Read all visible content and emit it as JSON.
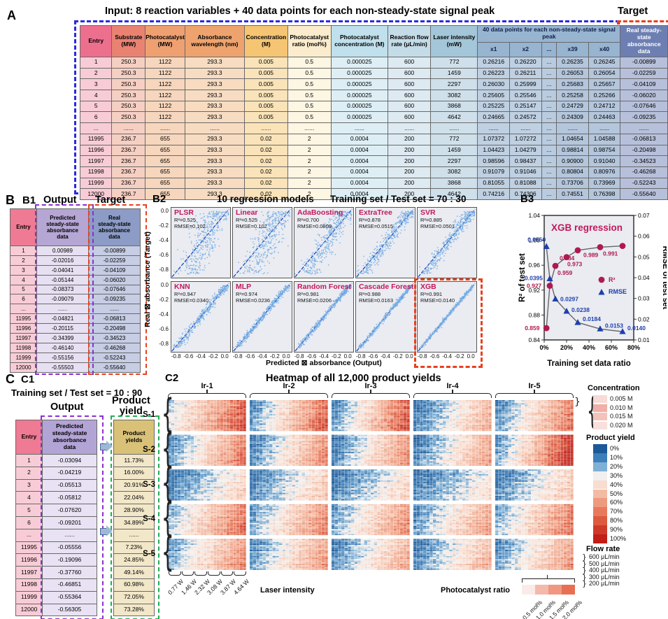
{
  "colors": {
    "blue_dash": "#2a2ae0",
    "red_dash": "#e8401e",
    "purple_dash": "#8c2fd0",
    "green_dash": "#1fae50",
    "model_name": "#c2185b",
    "scatter_point": "#78aee3",
    "scatter_line": "#1a43b8",
    "r2_marker": "#b01950",
    "rmse_marker": "#1f3fae",
    "plot_bg": "#eaecf2",
    "colA_hdr": [
      "#ec6f8e",
      "#ea8272",
      "#efa071",
      "#eea36e",
      "#f6c573",
      "#faeccc",
      "#bfe0ec",
      "#c4dce8",
      "#a3c6d8",
      "#97b4d0",
      "#97b4d0",
      "#97b4d0",
      "#97b4d0",
      "#97b4d0",
      "#6d7fb2"
    ],
    "colA_cell": [
      "#f8ccd6",
      "#f6cfc3",
      "#f6d6bd",
      "#f7dcc2",
      "#fae3b8",
      "#fdf6e3",
      "#ddeff5",
      "#ddeaf1",
      "#cfe0ea",
      "#bfd0e2",
      "#bfd0e2",
      "#b9cbdf",
      "#b4c6dc",
      "#b4c6dc",
      "#b7c0da"
    ],
    "b1_hdr": [
      "#ef7a93",
      "#b5a6d4",
      "#8c9cc6"
    ],
    "b1_cell": [
      "#f8ccd6",
      "#e7e0f2",
      "#c6cde4"
    ],
    "c1_hdr": [
      "#ef7a93",
      "#b3a4d6",
      "#d9c178"
    ],
    "c1_cell": [
      "#f8ccd6",
      "#e8e2f4",
      "#f2e7c8"
    ]
  },
  "panelA": {
    "label": "A",
    "title": "Input: 8 reaction variables + 40 data points for each non-steady-state signal peak",
    "target_label": "Target",
    "headers": [
      "Entry",
      "Substrate\n(MW)",
      "Photocatalyst\n(MW)",
      "Absorbance\nwavelength (nm)",
      "Concentration\n(M)",
      "Photocatalyst\nratio (mol%)",
      "Photocatalyst\nconcentration (M)",
      "Reaction flow\nrate (μL/min)",
      "Laser intensity\n(mW)"
    ],
    "span_header": "40 data points for each non-steady-state signal peak",
    "x_headers": [
      "x1",
      "x2",
      "...",
      "x39",
      "x40"
    ],
    "target_header": "Real steady-state\nabsorbance data",
    "rows": [
      [
        "1",
        "250.3",
        "1122",
        "293.3",
        "0.005",
        "0.5",
        "0.000025",
        "600",
        "772",
        "0.26216",
        "0.26220",
        "...",
        "0.26235",
        "0.26245",
        "-0.00899"
      ],
      [
        "2",
        "250.3",
        "1122",
        "293.3",
        "0.005",
        "0.5",
        "0.000025",
        "600",
        "1459",
        "0.26223",
        "0.26211",
        "...",
        "0.26053",
        "0.26054",
        "-0.02259"
      ],
      [
        "3",
        "250.3",
        "1122",
        "293.3",
        "0.005",
        "0.5",
        "0.000025",
        "600",
        "2297",
        "0.26030",
        "0.25999",
        "...",
        "0.25683",
        "0.25657",
        "-0.04109"
      ],
      [
        "4",
        "250.3",
        "1122",
        "293.3",
        "0.005",
        "0.5",
        "0.000025",
        "600",
        "3082",
        "0.25605",
        "0.25546",
        "...",
        "0.25258",
        "0.25266",
        "-0.06020"
      ],
      [
        "5",
        "250.3",
        "1122",
        "293.3",
        "0.005",
        "0.5",
        "0.000025",
        "600",
        "3868",
        "0.25225",
        "0.25147",
        "...",
        "0.24729",
        "0.24712",
        "-0.07646"
      ],
      [
        "6",
        "250.3",
        "1122",
        "293.3",
        "0.005",
        "0.5",
        "0.000025",
        "600",
        "4642",
        "0.24665",
        "0.24572",
        "...",
        "0.24309",
        "0.24463",
        "-0.09235"
      ],
      [
        "...",
        "......",
        "......",
        "......",
        "......",
        "......",
        "......",
        "......",
        "......",
        "......",
        "......",
        "...",
        "......",
        "......",
        "......"
      ],
      [
        "11995",
        "236.7",
        "655",
        "293.3",
        "0.02",
        "2",
        "0.0004",
        "200",
        "772",
        "1.07372",
        "1.07272",
        "...",
        "1.04654",
        "1.04588",
        "-0.06813"
      ],
      [
        "11996",
        "236.7",
        "655",
        "293.3",
        "0.02",
        "2",
        "0.0004",
        "200",
        "1459",
        "1.04423",
        "1.04279",
        "...",
        "0.98814",
        "0.98754",
        "-0.20498"
      ],
      [
        "11997",
        "236.7",
        "655",
        "293.3",
        "0.02",
        "2",
        "0.0004",
        "200",
        "2297",
        "0.98596",
        "0.98437",
        "...",
        "0.90900",
        "0.91040",
        "-0.34523"
      ],
      [
        "11998",
        "236.7",
        "655",
        "293.3",
        "0.02",
        "2",
        "0.0004",
        "200",
        "3082",
        "0.91079",
        "0.91046",
        "...",
        "0.80804",
        "0.80976",
        "-0.46268"
      ],
      [
        "11999",
        "236.7",
        "655",
        "293.3",
        "0.02",
        "2",
        "0.0004",
        "200",
        "3868",
        "0.81055",
        "0.81088",
        "...",
        "0.73706",
        "0.73969",
        "-0.52243"
      ],
      [
        "12000",
        "236.7",
        "655",
        "293.3",
        "0.02",
        "2",
        "0.0004",
        "200",
        "4642",
        "0.74216",
        "0.74306",
        "...",
        "0.74551",
        "0.76398",
        "-0.55640"
      ]
    ]
  },
  "panelB": {
    "label": "B",
    "b1": {
      "label": "B1",
      "output_label": "Output",
      "target_label": "Target",
      "headers": [
        "Entry",
        "Predicted\nsteady-state\nabsorbance\ndata",
        "Real\nsteady-state\nabsorbance\ndata"
      ],
      "rows": [
        [
          "1",
          "0.00989",
          "-0.00899"
        ],
        [
          "2",
          "-0.02016",
          "-0.02259"
        ],
        [
          "3",
          "-0.04041",
          "-0.04109"
        ],
        [
          "4",
          "-0.05144",
          "-0.06020"
        ],
        [
          "5",
          "-0.08373",
          "-0.07646"
        ],
        [
          "6",
          "-0.09079",
          "-0.09235"
        ],
        [
          "...",
          "......",
          "......"
        ],
        [
          "11995",
          "-0.04821",
          "-0.06813"
        ],
        [
          "11996",
          "-0.20115",
          "-0.20498"
        ],
        [
          "11997",
          "-0.34399",
          "-0.34523"
        ],
        [
          "11998",
          "-0.46140",
          "-0.46268"
        ],
        [
          "11999",
          "-0.55156",
          "-0.52243"
        ],
        [
          "12000",
          "-0.55503",
          "-0.55640"
        ]
      ]
    },
    "b2": {
      "label": "B2",
      "title_left": "10 regression models",
      "title_right": "Training set / Test set = 70 : 30"
    },
    "b3": {
      "label": "B3"
    }
  },
  "panelC": {
    "label": "C",
    "c1": {
      "label": "C1",
      "title": "Training set / Test set = 10 : 90",
      "output_label": "Output",
      "yield_label": "Product\nyield",
      "headers": [
        "Entry",
        "Predicted\nsteady-state\nabsorbance\ndata",
        "Product\nyields"
      ],
      "rows": [
        [
          "1",
          "-0.03094",
          "11.73%"
        ],
        [
          "2",
          "-0.04219",
          "16.00%"
        ],
        [
          "3",
          "-0.05513",
          "20.91%"
        ],
        [
          "4",
          "-0.05812",
          "22.04%"
        ],
        [
          "5",
          "-0.07620",
          "28.90%"
        ],
        [
          "6",
          "-0.09201",
          "34.89%"
        ],
        [
          "...",
          "......",
          "......"
        ],
        [
          "11995",
          "-0.05556",
          "7.23%"
        ],
        [
          "11996",
          "-0.19096",
          "24.85%"
        ],
        [
          "11997",
          "-0.37760",
          "49.14%"
        ],
        [
          "11998",
          "-0.46851",
          "60.98%"
        ],
        [
          "11999",
          "-0.55364",
          "72.05%"
        ],
        [
          "12000",
          "-0.56305",
          "73.28%"
        ]
      ]
    },
    "c2": {
      "label": "C2",
      "title": "Heatmap of all 12,000 product yields",
      "xlabel": "Laser intensity",
      "ratio_label": "Photocatalyst ratio",
      "laser_labels": [
        "0.77 W",
        "1.46 W",
        "2.32 W",
        "3.08 W",
        "3.87 W",
        "4.64 W"
      ],
      "legend_concentration": {
        "title": "Concentration",
        "items": [
          {
            "label": "0.005 M",
            "color": "#f7dbd7"
          },
          {
            "label": "0.010 M",
            "color": "#efb0a7"
          },
          {
            "label": "0.015 M",
            "color": "#f3c3bb"
          },
          {
            "label": "0.020 M",
            "color": "#f9e0dc"
          }
        ]
      },
      "legend_yield": {
        "title": "Product yield",
        "items": [
          {
            "label": "0%",
            "color": "#1c5998"
          },
          {
            "label": "10%",
            "color": "#3d7fb9"
          },
          {
            "label": "20%",
            "color": "#7fb0d5"
          },
          {
            "label": "30%",
            "color": "#f2f0ee"
          },
          {
            "label": "40%",
            "color": "#f8ddd0"
          },
          {
            "label": "50%",
            "color": "#f3bba4"
          },
          {
            "label": "60%",
            "color": "#ee9a7e"
          },
          {
            "label": "70%",
            "color": "#e87a5c"
          },
          {
            "label": "80%",
            "color": "#dd5a3e"
          },
          {
            "label": "90%",
            "color": "#cf3a28"
          },
          {
            "label": "100%",
            "color": "#c01e16"
          }
        ]
      },
      "legend_flow": {
        "title": "Flow rate",
        "items": [
          "600 μL/min",
          "500 μL/min",
          "400 μL/min",
          "300 μL/min",
          "200 μL/min"
        ]
      },
      "legend_ratio": {
        "title": "Photocatalyst ratio",
        "items": [
          {
            "label": "0.5 mol%",
            "color": "#fbebe8"
          },
          {
            "label": "1.0 mol%",
            "color": "#f4b9ab"
          },
          {
            "label": "1.5 mol%",
            "color": "#ef9781"
          },
          {
            "label": "2.0 mol%",
            "color": "#e96f52"
          }
        ]
      }
    }
  },
  "chart_data": [
    {
      "type": "scatter",
      "panel": "B2",
      "title": "10 regression models",
      "subtitle": "Training set / Test set = 70 : 30",
      "xlabel": "Predicted ⊠ absorbance (Output)",
      "ylabel": "Real ⊠ absorbance (Target)",
      "axis_range": [
        -0.9,
        0.05
      ],
      "xticks": [
        "-0.8",
        "-0.6",
        "-0.4",
        "-0.2",
        "0.0"
      ],
      "yticks": [
        "0.0",
        "-0.2",
        "-0.4",
        "-0.6",
        "-0.8"
      ],
      "models": [
        {
          "name": "PLSR",
          "r2": 0.525,
          "rmse": 0.102,
          "r2_label": "R²=0.525",
          "rmse_label": "RMSE=0.102",
          "highlight": false
        },
        {
          "name": "Linear",
          "r2": 0.525,
          "rmse": 0.102,
          "r2_label": "R²=0.525",
          "rmse_label": "RMSE=0.102",
          "highlight": false
        },
        {
          "name": "AdaBoosting",
          "r2": 0.7,
          "rmse": 0.0809,
          "r2_label": "R²=0.700",
          "rmse_label": "RMSE=0.0809",
          "highlight": false
        },
        {
          "name": "ExtraTree",
          "r2": 0.878,
          "rmse": 0.0515,
          "r2_label": "R²=0.878",
          "rmse_label": "RMSE=0.0515",
          "highlight": false
        },
        {
          "name": "SVR",
          "r2": 0.885,
          "rmse": 0.0501,
          "r2_label": "R²=0.885",
          "rmse_label": "RMSE=0.0501",
          "highlight": false
        },
        {
          "name": "KNN",
          "r2": 0.947,
          "rmse": 0.034,
          "r2_label": "R²=0.947",
          "rmse_label": "RMSE=0.0340",
          "highlight": false
        },
        {
          "name": "MLP",
          "r2": 0.974,
          "rmse": 0.0236,
          "r2_label": "R²=0.974",
          "rmse_label": "RMSE=0.0236",
          "highlight": false
        },
        {
          "name": "Random Forest",
          "r2": 0.981,
          "rmse": 0.0206,
          "r2_label": "R²=0.981",
          "rmse_label": "RMSE=0.0206",
          "highlight": false
        },
        {
          "name": "Cascade Forest",
          "r2": 0.988,
          "rmse": 0.0163,
          "r2_label": "R²=0.988",
          "rmse_label": "RMSE=0.0163",
          "highlight": false
        },
        {
          "name": "XGB",
          "r2": 0.991,
          "rmse": 0.014,
          "r2_label": "R²=0.991",
          "rmse_label": "RMSE=0.0140",
          "highlight": true
        }
      ]
    },
    {
      "type": "line",
      "panel": "B3",
      "title": "XGB regression",
      "xlabel": "Training set data ratio",
      "ylabel_left": "R² of test set",
      "ylabel_right": "RMSE of test set",
      "x_percent": [
        2,
        5,
        10,
        20,
        30,
        50,
        70
      ],
      "series": [
        {
          "name": "R²",
          "values": [
            0.859,
            0.927,
            0.959,
            0.973,
            0.984,
            0.989,
            0.991
          ],
          "labels": [
            "0.859",
            "0.927",
            "0.959",
            "0.973",
            "0.984",
            "0.989",
            "0.991"
          ]
        },
        {
          "name": "RMSE",
          "values": [
            0.055,
            0.0395,
            0.0297,
            0.0238,
            0.0184,
            0.0153,
            0.014
          ],
          "labels": [
            "0.0550",
            "0.0395",
            "0.0297",
            "0.0238",
            "0.0184",
            "0.0153",
            "0.0140"
          ]
        }
      ],
      "ylim_left": [
        0.84,
        1.04
      ],
      "yticks_left": [
        "0.84",
        "0.88",
        "0.92",
        "0.96",
        "1.00",
        "1.04"
      ],
      "ylim_right": [
        0.01,
        0.07
      ],
      "yticks_right": [
        "0.01",
        "0.02",
        "0.03",
        "0.04",
        "0.05",
        "0.06",
        "0.07"
      ],
      "xticks": [
        {
          "label": "0%",
          "value": 0
        },
        {
          "label": "20%",
          "value": 20
        },
        {
          "label": "40%",
          "value": 40
        },
        {
          "label": "60%",
          "value": 60
        },
        {
          "label": "80%",
          "value": 80
        }
      ],
      "legend": [
        "R²",
        "RMSE"
      ]
    },
    {
      "type": "heatmap",
      "panel": "C2",
      "title": "Heatmap of all 12,000 product yields",
      "row_groups": [
        "S-1",
        "S-2",
        "S-3",
        "S-4",
        "S-5"
      ],
      "col_groups": [
        "Ir-1",
        "Ir-2",
        "Ir-3",
        "Ir-4",
        "Ir-5"
      ],
      "rows_per_group": 20,
      "cols_per_group": 24,
      "row_structure": "5 flow rates (600-200 μL/min) × 4 concentrations (0.005-0.020 M)",
      "col_structure": "6 laser intensities (0.77-4.64 W) × 4 photocatalyst ratios (0.5-2.0 mol%)",
      "value_unit": "% product yield",
      "value_range": [
        0,
        100
      ],
      "block_yield_range": [
        [
          [
            25,
            80
          ],
          [
            8,
            78
          ],
          [
            8,
            80
          ],
          [
            2,
            52
          ],
          [
            8,
            70
          ]
        ],
        [
          [
            8,
            70
          ],
          [
            5,
            65
          ],
          [
            2,
            65
          ],
          [
            2,
            58
          ],
          [
            12,
            92
          ]
        ],
        [
          [
            2,
            37
          ],
          [
            2,
            42
          ],
          [
            1,
            36
          ],
          [
            1,
            31
          ],
          [
            2,
            42
          ]
        ],
        [
          [
            18,
            73
          ],
          [
            12,
            67
          ],
          [
            12,
            64
          ],
          [
            8,
            58
          ],
          [
            15,
            70
          ]
        ],
        [
          [
            12,
            64
          ],
          [
            8,
            60
          ],
          [
            4,
            54
          ],
          [
            3,
            51
          ],
          [
            8,
            60
          ]
        ]
      ],
      "effects": {
        "ratio": 8,
        "flow": 10,
        "conc": -6,
        "noise": 9
      },
      "color_stops": [
        [
          0,
          "#1c5998"
        ],
        [
          10,
          "#3d7fb9"
        ],
        [
          20,
          "#7fb0d5"
        ],
        [
          30,
          "#f2f0ee"
        ],
        [
          42,
          "#f8ddd0"
        ],
        [
          55,
          "#f3bba4"
        ],
        [
          68,
          "#ee9a7e"
        ],
        [
          80,
          "#e2694c"
        ],
        [
          90,
          "#d2402c"
        ],
        [
          100,
          "#c01e16"
        ]
      ],
      "seed": 7
    }
  ]
}
